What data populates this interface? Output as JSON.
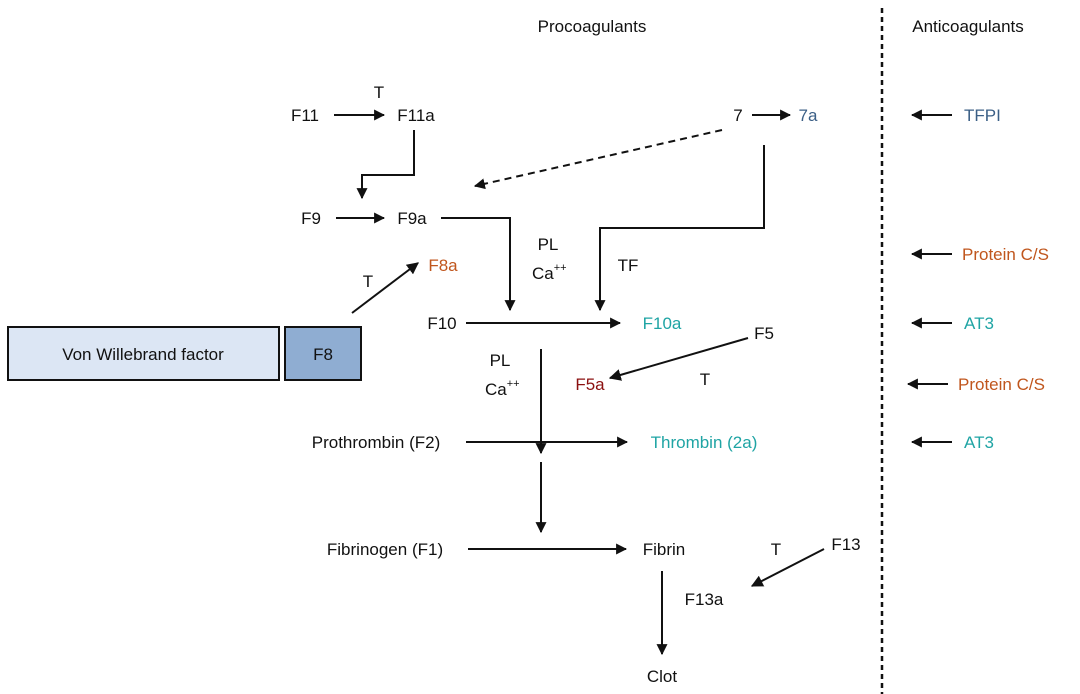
{
  "headers": {
    "procoagulants": "Procoagulants",
    "anticoagulants": "Anticoagulants"
  },
  "nodes": {
    "f11": "F11",
    "f11a": "F11a",
    "t_f11": "T",
    "f7": "7",
    "f7a": "7a",
    "f9": "F9",
    "f9a": "F9a",
    "pl1": "PL",
    "ca1": "Ca",
    "ca1_sup": "++",
    "f8a": "F8a",
    "tf": "TF",
    "t_f8": "T",
    "vwf": "Von Willebrand factor",
    "f8": "F8",
    "f10": "F10",
    "f10a": "F10a",
    "f5": "F5",
    "pl2": "PL",
    "ca2": "Ca",
    "ca2_sup": "++",
    "f5a": "F5a",
    "t_f5": "T",
    "prothrombin": "Prothrombin (F2)",
    "thrombin": "Thrombin (2a)",
    "fibrinogen": "Fibrinogen (F1)",
    "fibrin": "Fibrin",
    "t_f13": "T",
    "f13": "F13",
    "f13a": "F13a",
    "clot": "Clot"
  },
  "anticoagulants": [
    "TFPI",
    "Protein C/S",
    "AT3",
    "Protein C/S",
    "AT3"
  ],
  "colors": {
    "activated_7a": "#3b5f86",
    "f8a_and_protein_cs": "#c0561d",
    "f10a_thrombin_at3": "#1fa4a4",
    "f5a": "#8b1010",
    "vwf_box_fill": "#dce6f4",
    "f8_box_fill": "#8fadd2"
  }
}
